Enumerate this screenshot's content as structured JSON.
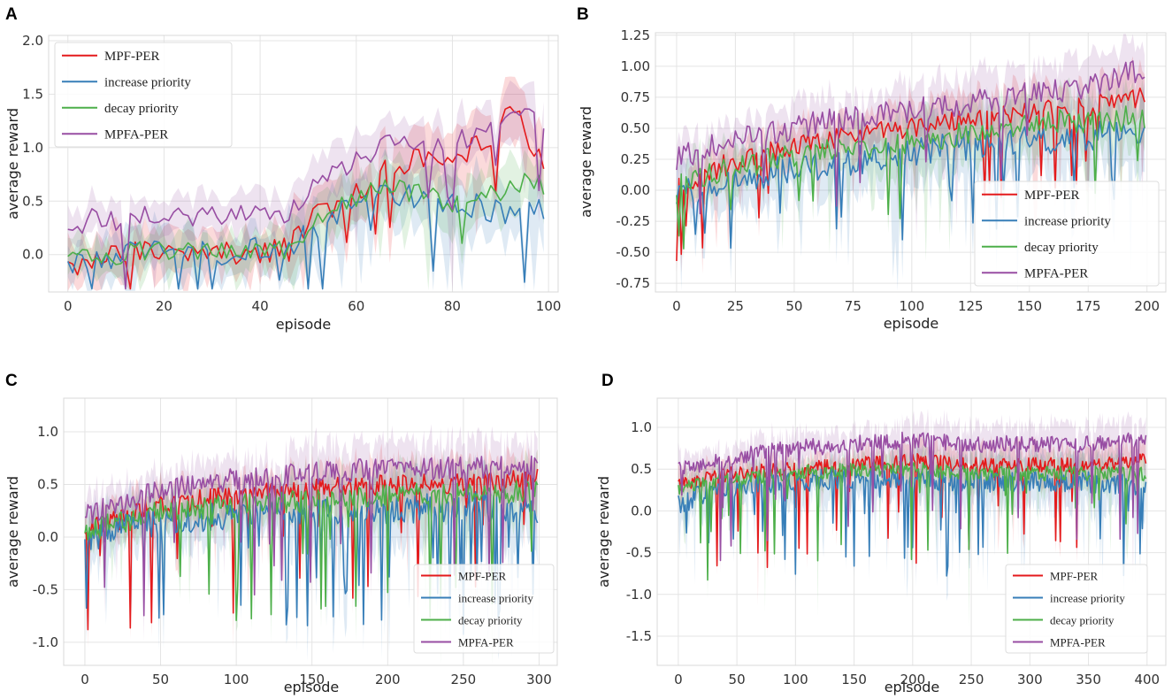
{
  "colors": {
    "mpf_per": "#e41a1c",
    "increase_priority": "#377eb8",
    "decay_priority": "#4daf4a",
    "mpfa_per": "#984ea3"
  },
  "chart_data": [
    {
      "panel": "A",
      "type": "line",
      "xlabel": "episode",
      "ylabel": "average reward",
      "xlim": [
        -4,
        102
      ],
      "ylim": [
        -0.35,
        2.05
      ],
      "xticks": [
        "0",
        "20",
        "40",
        "60",
        "80",
        "100"
      ],
      "yticks": [
        "0.0",
        "0.5",
        "1.0",
        "1.5",
        "2.0"
      ],
      "legend_position": "top-left",
      "episodes": 100,
      "series": [
        {
          "name": "MPF-PER",
          "key": "mpf_per",
          "knots": [
            [
              0,
              -0.1
            ],
            [
              10,
              0.0
            ],
            [
              20,
              0.05
            ],
            [
              30,
              0.0
            ],
            [
              40,
              0.0
            ],
            [
              46,
              0.05
            ],
            [
              50,
              0.3
            ],
            [
              55,
              0.45
            ],
            [
              60,
              0.6
            ],
            [
              65,
              0.75
            ],
            [
              70,
              0.85
            ],
            [
              75,
              0.9
            ],
            [
              80,
              0.95
            ],
            [
              85,
              1.0
            ],
            [
              90,
              1.2
            ],
            [
              93,
              1.4
            ],
            [
              96,
              1.1
            ],
            [
              99,
              0.8
            ]
          ],
          "noise": 0.12
        },
        {
          "name": "increase priority",
          "key": "increase_priority",
          "knots": [
            [
              0,
              -0.1
            ],
            [
              10,
              0.0
            ],
            [
              20,
              0.05
            ],
            [
              30,
              0.0
            ],
            [
              40,
              0.05
            ],
            [
              46,
              0.0
            ],
            [
              50,
              0.2
            ],
            [
              55,
              0.35
            ],
            [
              60,
              0.5
            ],
            [
              65,
              0.6
            ],
            [
              70,
              0.55
            ],
            [
              75,
              0.5
            ],
            [
              80,
              0.45
            ],
            [
              85,
              0.45
            ],
            [
              90,
              0.4
            ],
            [
              95,
              0.45
            ],
            [
              99,
              0.45
            ]
          ],
          "noise": 0.12
        },
        {
          "name": "decay priority",
          "key": "decay_priority",
          "knots": [
            [
              0,
              -0.05
            ],
            [
              10,
              0.0
            ],
            [
              20,
              0.05
            ],
            [
              30,
              0.0
            ],
            [
              40,
              0.05
            ],
            [
              46,
              0.05
            ],
            [
              50,
              0.25
            ],
            [
              55,
              0.4
            ],
            [
              60,
              0.55
            ],
            [
              65,
              0.6
            ],
            [
              70,
              0.6
            ],
            [
              75,
              0.55
            ],
            [
              80,
              0.5
            ],
            [
              85,
              0.5
            ],
            [
              90,
              0.6
            ],
            [
              95,
              0.7
            ],
            [
              99,
              0.65
            ]
          ],
          "noise": 0.1
        },
        {
          "name": "MPFA-PER",
          "key": "mpfa_per",
          "knots": [
            [
              0,
              0.2
            ],
            [
              5,
              0.35
            ],
            [
              10,
              0.3
            ],
            [
              15,
              0.35
            ],
            [
              20,
              0.4
            ],
            [
              25,
              0.35
            ],
            [
              30,
              0.4
            ],
            [
              35,
              0.35
            ],
            [
              40,
              0.4
            ],
            [
              46,
              0.35
            ],
            [
              50,
              0.6
            ],
            [
              55,
              0.75
            ],
            [
              60,
              0.9
            ],
            [
              65,
              1.0
            ],
            [
              70,
              1.05
            ],
            [
              75,
              1.0
            ],
            [
              80,
              1.05
            ],
            [
              85,
              1.1
            ],
            [
              90,
              1.2
            ],
            [
              93,
              1.35
            ],
            [
              96,
              1.3
            ],
            [
              99,
              1.25
            ]
          ],
          "noise": 0.1
        }
      ]
    },
    {
      "panel": "B",
      "type": "line",
      "xlabel": "episode",
      "ylabel": "average reward",
      "xlim": [
        -9,
        208
      ],
      "ylim": [
        -0.82,
        1.27
      ],
      "xticks": [
        "0",
        "25",
        "50",
        "75",
        "100",
        "125",
        "150",
        "175",
        "200"
      ],
      "yticks": [
        "-0.75",
        "-0.50",
        "-0.25",
        "0.00",
        "0.25",
        "0.50",
        "0.75",
        "1.00",
        "1.25"
      ],
      "legend_position": "bottom-right",
      "episodes": 200,
      "series": [
        {
          "name": "MPF-PER",
          "key": "mpf_per",
          "knots": [
            [
              0,
              0.05
            ],
            [
              20,
              0.2
            ],
            [
              40,
              0.3
            ],
            [
              60,
              0.4
            ],
            [
              80,
              0.45
            ],
            [
              100,
              0.5
            ],
            [
              120,
              0.55
            ],
            [
              140,
              0.6
            ],
            [
              160,
              0.65
            ],
            [
              180,
              0.7
            ],
            [
              199,
              0.75
            ]
          ],
          "noise": 0.09
        },
        {
          "name": "increase priority",
          "key": "increase_priority",
          "knots": [
            [
              0,
              0.0
            ],
            [
              20,
              0.05
            ],
            [
              40,
              0.15
            ],
            [
              60,
              0.2
            ],
            [
              80,
              0.25
            ],
            [
              100,
              0.3
            ],
            [
              120,
              0.35
            ],
            [
              140,
              0.4
            ],
            [
              160,
              0.4
            ],
            [
              180,
              0.45
            ],
            [
              199,
              0.45
            ]
          ],
          "noise": 0.12
        },
        {
          "name": "decay priority",
          "key": "decay_priority",
          "knots": [
            [
              0,
              0.05
            ],
            [
              20,
              0.15
            ],
            [
              40,
              0.25
            ],
            [
              60,
              0.3
            ],
            [
              80,
              0.35
            ],
            [
              100,
              0.4
            ],
            [
              120,
              0.45
            ],
            [
              140,
              0.5
            ],
            [
              160,
              0.55
            ],
            [
              180,
              0.55
            ],
            [
              199,
              0.6
            ]
          ],
          "noise": 0.1
        },
        {
          "name": "MPFA-PER",
          "key": "mpfa_per",
          "knots": [
            [
              0,
              0.25
            ],
            [
              20,
              0.4
            ],
            [
              40,
              0.45
            ],
            [
              60,
              0.55
            ],
            [
              80,
              0.6
            ],
            [
              100,
              0.65
            ],
            [
              120,
              0.7
            ],
            [
              140,
              0.75
            ],
            [
              160,
              0.8
            ],
            [
              180,
              0.85
            ],
            [
              199,
              1.0
            ]
          ],
          "noise": 0.1
        }
      ]
    },
    {
      "panel": "C",
      "type": "line",
      "xlabel": "episode",
      "ylabel": "average reward",
      "xlim": [
        -14,
        312
      ],
      "ylim": [
        -1.22,
        1.32
      ],
      "xticks": [
        "0",
        "50",
        "100",
        "150",
        "200",
        "250",
        "300"
      ],
      "yticks": [
        "-1.0",
        "-0.5",
        "0.0",
        "0.5",
        "1.0"
      ],
      "legend_position": "bottom-right",
      "episodes": 300,
      "series": [
        {
          "name": "MPF-PER",
          "key": "mpf_per",
          "knots": [
            [
              0,
              0.05
            ],
            [
              50,
              0.3
            ],
            [
              100,
              0.4
            ],
            [
              150,
              0.45
            ],
            [
              200,
              0.5
            ],
            [
              250,
              0.5
            ],
            [
              299,
              0.55
            ]
          ],
          "noise": 0.1
        },
        {
          "name": "increase priority",
          "key": "increase_priority",
          "knots": [
            [
              0,
              0.0
            ],
            [
              50,
              0.15
            ],
            [
              100,
              0.2
            ],
            [
              150,
              0.25
            ],
            [
              200,
              0.25
            ],
            [
              250,
              0.3
            ],
            [
              299,
              0.25
            ]
          ],
          "noise": 0.14
        },
        {
          "name": "decay priority",
          "key": "decay_priority",
          "knots": [
            [
              0,
              0.05
            ],
            [
              50,
              0.25
            ],
            [
              100,
              0.3
            ],
            [
              150,
              0.35
            ],
            [
              200,
              0.4
            ],
            [
              250,
              0.4
            ],
            [
              299,
              0.45
            ]
          ],
          "noise": 0.11
        },
        {
          "name": "MPFA-PER",
          "key": "mpfa_per",
          "knots": [
            [
              0,
              0.2
            ],
            [
              50,
              0.45
            ],
            [
              100,
              0.55
            ],
            [
              150,
              0.6
            ],
            [
              200,
              0.65
            ],
            [
              250,
              0.65
            ],
            [
              299,
              0.7
            ]
          ],
          "noise": 0.11
        }
      ]
    },
    {
      "panel": "D",
      "type": "line",
      "xlabel": "episode",
      "ylabel": "average reward",
      "xlim": [
        -18,
        416
      ],
      "ylim": [
        -1.85,
        1.35
      ],
      "xticks": [
        "0",
        "50",
        "100",
        "150",
        "200",
        "250",
        "300",
        "350",
        "400"
      ],
      "yticks": [
        "-1.5",
        "-1.0",
        "-0.5",
        "0.0",
        "0.5",
        "1.0"
      ],
      "legend_position": "bottom-right",
      "episodes": 400,
      "series": [
        {
          "name": "MPF-PER",
          "key": "mpf_per",
          "knots": [
            [
              0,
              0.3
            ],
            [
              50,
              0.45
            ],
            [
              100,
              0.5
            ],
            [
              150,
              0.55
            ],
            [
              200,
              0.6
            ],
            [
              250,
              0.55
            ],
            [
              300,
              0.55
            ],
            [
              350,
              0.55
            ],
            [
              399,
              0.6
            ]
          ],
          "noise": 0.09
        },
        {
          "name": "increase priority",
          "key": "increase_priority",
          "knots": [
            [
              0,
              0.1
            ],
            [
              50,
              0.3
            ],
            [
              100,
              0.35
            ],
            [
              150,
              0.4
            ],
            [
              200,
              0.4
            ],
            [
              250,
              0.35
            ],
            [
              300,
              0.35
            ],
            [
              350,
              0.35
            ],
            [
              399,
              0.3
            ]
          ],
          "noise": 0.13
        },
        {
          "name": "decay priority",
          "key": "decay_priority",
          "knots": [
            [
              0,
              0.25
            ],
            [
              50,
              0.4
            ],
            [
              100,
              0.45
            ],
            [
              150,
              0.5
            ],
            [
              200,
              0.5
            ],
            [
              250,
              0.45
            ],
            [
              300,
              0.45
            ],
            [
              350,
              0.45
            ],
            [
              399,
              0.45
            ]
          ],
          "noise": 0.09
        },
        {
          "name": "MPFA-PER",
          "key": "mpfa_per",
          "knots": [
            [
              0,
              0.5
            ],
            [
              50,
              0.65
            ],
            [
              100,
              0.75
            ],
            [
              150,
              0.8
            ],
            [
              200,
              0.85
            ],
            [
              250,
              0.8
            ],
            [
              300,
              0.8
            ],
            [
              350,
              0.8
            ],
            [
              399,
              0.85
            ]
          ],
          "noise": 0.1
        }
      ]
    }
  ]
}
